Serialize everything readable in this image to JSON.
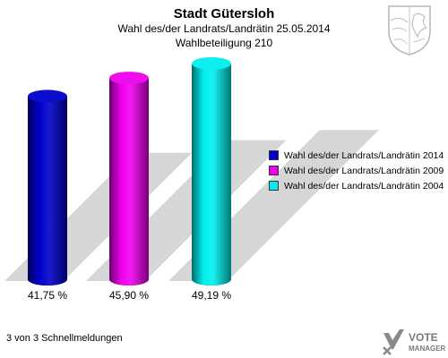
{
  "header": {
    "title": "Stadt Gütersloh",
    "subtitle": "Wahl des/der Landrats/Landrätin 25.05.2014",
    "subtitle2": "Wahlbeteiligung 210"
  },
  "chart_data": {
    "type": "bar",
    "categories": [
      "Wahl des/der Landrats/Landrätin 2014",
      "Wahl des/der Landrats/Landrätin 2009",
      "Wahl des/der Landrats/Landrätin 2004"
    ],
    "values": [
      41.75,
      45.9,
      49.19
    ],
    "value_labels": [
      "41,75 %",
      "45,90 %",
      "49,19 %"
    ],
    "colors": [
      "#0000cc",
      "#ee00ee",
      "#00eeee"
    ],
    "legend_position": "right",
    "grid": false
  },
  "legend": {
    "items": [
      {
        "label": "Wahl des/der Landrats/Landrätin 2014",
        "color": "#0000cc"
      },
      {
        "label": "Wahl des/der Landrats/Landrätin 2009",
        "color": "#ee00ee"
      },
      {
        "label": "Wahl des/der Landrats/Landrätin 2004",
        "color": "#00eeee"
      }
    ]
  },
  "footer": {
    "text": "3 von 3 Schnellmeldungen"
  },
  "logo": {
    "line1": "VOTE",
    "line2": "MANAGER",
    "icon": "vote-manager-logo-icon"
  },
  "crest": {
    "icon": "coat-of-arms-icon"
  }
}
